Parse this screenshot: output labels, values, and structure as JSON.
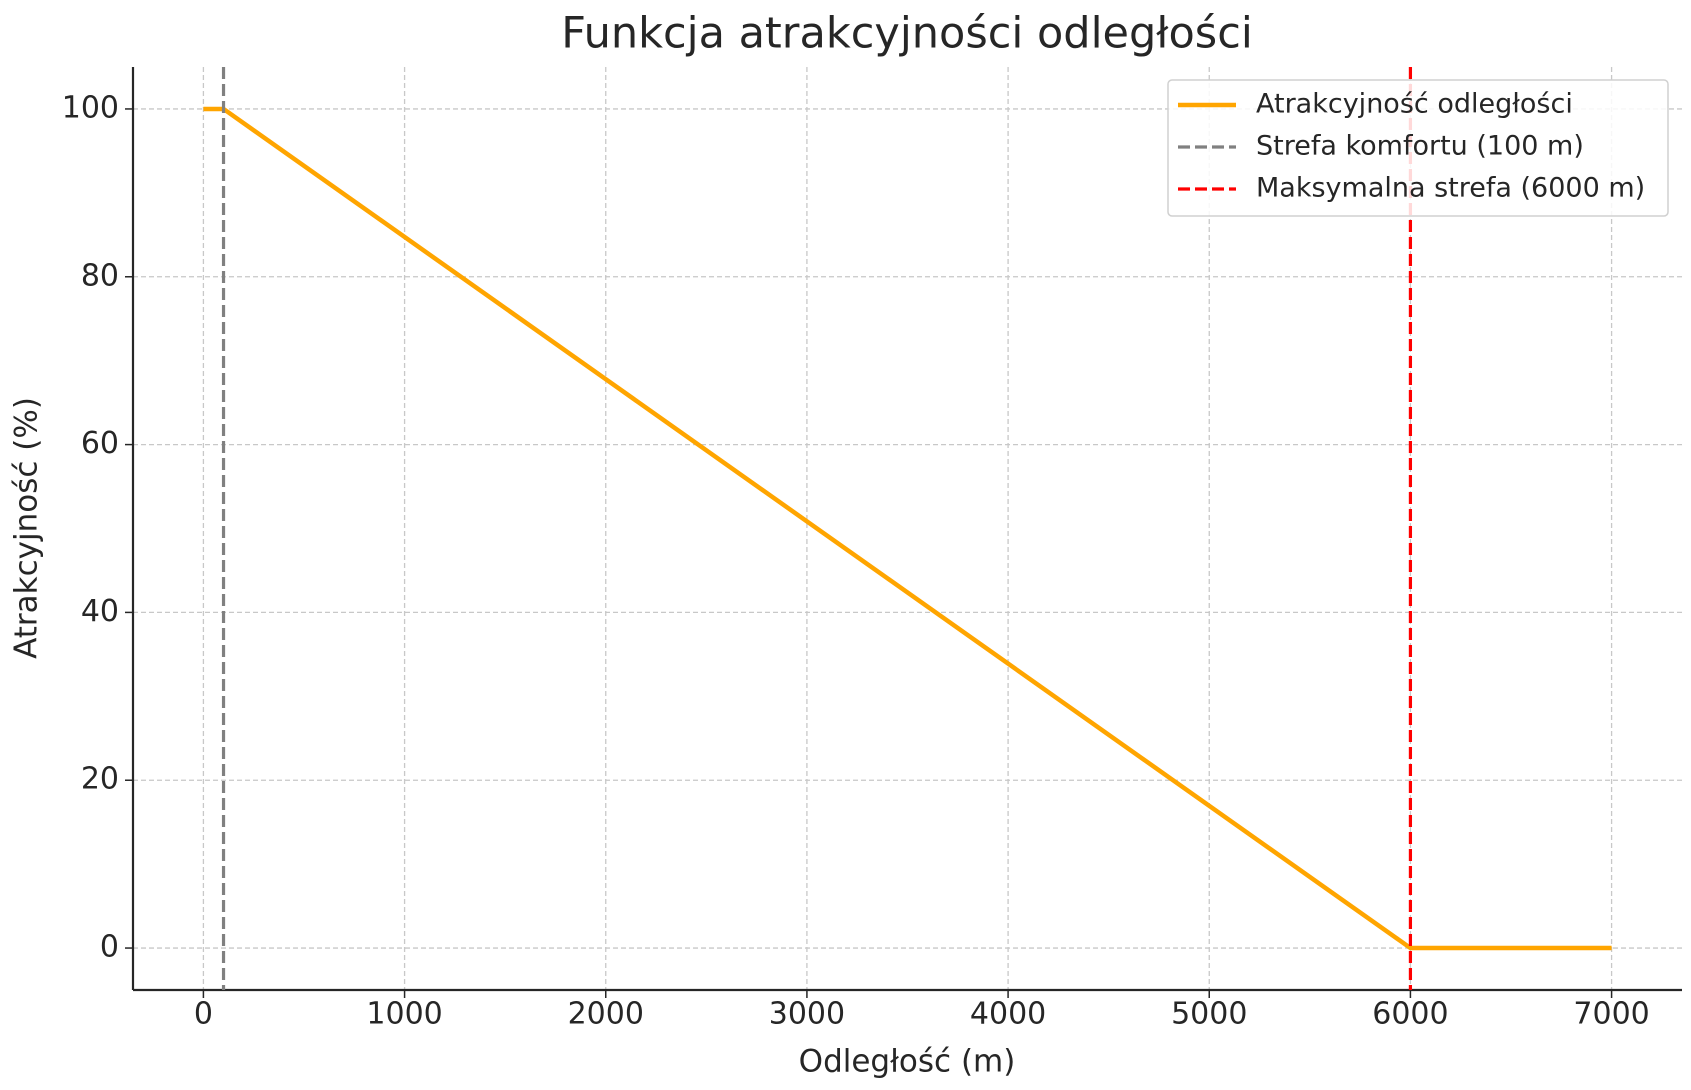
{
  "chart_data": {
    "type": "line",
    "title": "Funkcja atrakcyjności odległości",
    "xlabel": "Odległość (m)",
    "ylabel": "Atrakcyjność (%)",
    "series": [
      {
        "name": "Atrakcyjność odległości",
        "color": "#ffa500",
        "x": [
          0,
          100,
          6000,
          7000
        ],
        "values": [
          100,
          100,
          0,
          0
        ]
      }
    ],
    "vlines": [
      {
        "name": "Strefa komfortu (100 m)",
        "color": "#808080",
        "x": 100
      },
      {
        "name": "Maksymalna strefa (6000 m)",
        "color": "#ff0000",
        "x": 6000
      }
    ],
    "xlim": [
      -350,
      7350
    ],
    "ylim": [
      -5,
      105
    ],
    "xticks": [
      0,
      1000,
      2000,
      3000,
      4000,
      5000,
      6000,
      7000
    ],
    "yticks": [
      0,
      20,
      40,
      60,
      80,
      100
    ],
    "grid": true,
    "legend": "upper right"
  }
}
